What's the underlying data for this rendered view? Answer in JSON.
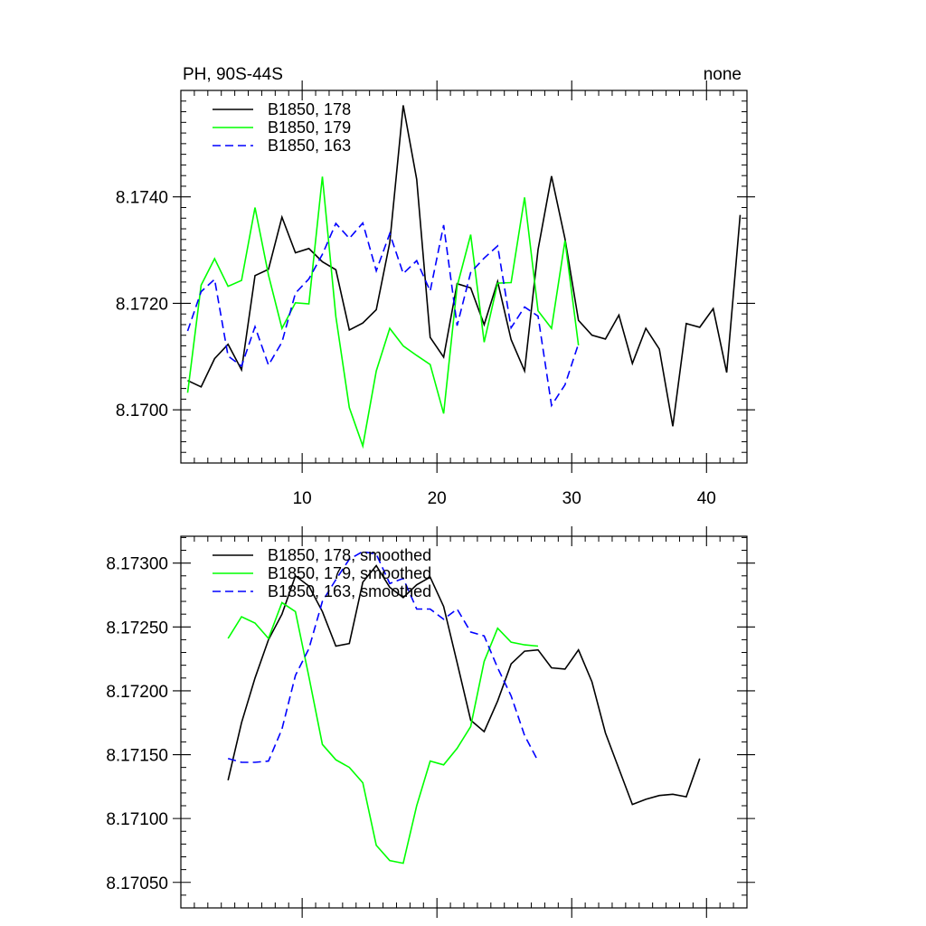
{
  "chart_data": [
    {
      "type": "line",
      "title_left": "PH, 90S-44S",
      "title_right": "none",
      "xlim": [
        1,
        43
      ],
      "ylim": [
        8.169,
        8.176
      ],
      "xticks": [
        10,
        20,
        30,
        40
      ],
      "xtick_labels": [
        "10",
        "20",
        "30",
        "40"
      ],
      "yticks": [
        8.17,
        8.172,
        8.174
      ],
      "ytick_labels": [
        "8.1700",
        "8.1720",
        "8.1740"
      ],
      "series": [
        {
          "name": "B1850, 178",
          "color": "#000000",
          "dash": "solid",
          "x": [
            1.5,
            2.5,
            3.5,
            4.5,
            5.5,
            6.5,
            7.5,
            8.5,
            9.5,
            10.5,
            11.5,
            12.5,
            13.5,
            14.5,
            15.5,
            16.5,
            17.5,
            18.5,
            19.5,
            20.5,
            21.5,
            22.5,
            23.5,
            24.5,
            25.5,
            26.5,
            27.5,
            28.5,
            29.5,
            30.5,
            31.5,
            32.5,
            33.5,
            34.5,
            35.5,
            36.5,
            37.5,
            38.5,
            39.5,
            40.5,
            41.5,
            42.5
          ],
          "values": [
            8.17055,
            8.17043,
            8.17096,
            8.17123,
            8.17075,
            8.17252,
            8.17264,
            8.17362,
            8.17295,
            8.17303,
            8.17278,
            8.17263,
            8.1715,
            8.17163,
            8.17188,
            8.17314,
            8.17572,
            8.17433,
            8.17136,
            8.17099,
            8.17237,
            8.17229,
            8.1716,
            8.17241,
            8.17132,
            8.17073,
            8.17301,
            8.17439,
            8.17321,
            8.17168,
            8.1714,
            8.17133,
            8.17178,
            8.17087,
            8.17153,
            8.17114,
            8.16969,
            8.17162,
            8.17155,
            8.1719,
            8.1707,
            8.17366
          ]
        },
        {
          "name": "B1850, 179",
          "color": "#00ff00",
          "dash": "solid",
          "x": [
            1.5,
            2.5,
            3.5,
            4.5,
            5.5,
            6.5,
            7.5,
            8.5,
            9.5,
            10.5,
            11.5,
            12.5,
            13.5,
            14.5,
            15.5,
            16.5,
            17.5,
            18.5,
            19.5,
            20.5,
            21.5,
            22.5,
            23.5,
            24.5,
            25.5,
            26.5,
            27.5,
            28.5,
            29.5,
            30.5
          ],
          "values": [
            8.17032,
            8.17234,
            8.17284,
            8.17232,
            8.17243,
            8.1738,
            8.17253,
            8.17153,
            8.17201,
            8.17199,
            8.17438,
            8.17175,
            8.17004,
            8.16932,
            8.17073,
            8.17153,
            8.1712,
            8.17102,
            8.17085,
            8.16993,
            8.17232,
            8.17329,
            8.17127,
            8.17238,
            8.17239,
            8.17399,
            8.17186,
            8.17153,
            8.17318,
            8.17121
          ]
        },
        {
          "name": "B1850, 163",
          "color": "#0000ff",
          "dash": "dashed",
          "x": [
            1.5,
            2.5,
            3.5,
            4.5,
            5.5,
            6.5,
            7.5,
            8.5,
            9.5,
            10.5,
            11.5,
            12.5,
            13.5,
            14.5,
            15.5,
            16.5,
            17.5,
            18.5,
            19.5,
            20.5,
            21.5,
            22.5,
            23.5,
            24.5,
            25.5,
            26.5,
            27.5,
            28.5,
            29.5,
            30.5
          ],
          "values": [
            8.17148,
            8.17222,
            8.17245,
            8.17101,
            8.17082,
            8.17156,
            8.17084,
            8.17127,
            8.17219,
            8.17246,
            8.17292,
            8.1735,
            8.17322,
            8.17351,
            8.17261,
            8.17331,
            8.17256,
            8.1728,
            8.17223,
            8.17347,
            8.17158,
            8.17258,
            8.17285,
            8.17308,
            8.17154,
            8.17193,
            8.17176,
            8.17008,
            8.17047,
            8.17124
          ]
        }
      ]
    },
    {
      "type": "line",
      "xlim": [
        1,
        43
      ],
      "ylim": [
        8.1703,
        8.17321
      ],
      "xticks": [
        10,
        20,
        30,
        40
      ],
      "yticks": [
        8.1705,
        8.171,
        8.1715,
        8.172,
        8.1725,
        8.173
      ],
      "ytick_labels": [
        "8.17050",
        "8.17100",
        "8.17150",
        "8.17200",
        "8.17250",
        "8.17300"
      ],
      "series": [
        {
          "name": "B1850, 178, smoothed",
          "color": "#000000",
          "dash": "solid",
          "x": [
            4.5,
            5.5,
            6.5,
            7.5,
            8.5,
            9.5,
            10.5,
            11.5,
            12.5,
            13.5,
            14.5,
            15.5,
            16.5,
            17.5,
            18.5,
            19.5,
            20.5,
            21.5,
            22.5,
            23.5,
            24.5,
            25.5,
            26.5,
            27.5,
            28.5,
            29.5,
            30.5,
            31.5,
            32.5,
            33.5,
            34.5,
            35.5,
            36.5,
            37.5,
            38.5,
            39.5
          ],
          "values": [
            8.1713,
            8.17175,
            8.1721,
            8.1724,
            8.1726,
            8.1729,
            8.17282,
            8.17262,
            8.17235,
            8.17237,
            8.17285,
            8.17298,
            8.17281,
            8.17273,
            8.17283,
            8.17289,
            8.17266,
            8.17222,
            8.17177,
            8.17168,
            8.17192,
            8.17221,
            8.17231,
            8.17232,
            8.17218,
            8.17217,
            8.17232,
            8.17207,
            8.17167,
            8.17139,
            8.17111,
            8.17115,
            8.17118,
            8.17119,
            8.17117,
            8.17147
          ]
        },
        {
          "name": "B1850, 179, smoothed",
          "color": "#00ff00",
          "dash": "solid",
          "x": [
            4.5,
            5.5,
            6.5,
            7.5,
            8.5,
            9.5,
            10.5,
            11.5,
            12.5,
            13.5,
            14.5,
            15.5,
            16.5,
            17.5,
            18.5,
            19.5,
            20.5,
            21.5,
            22.5,
            23.5,
            24.5,
            25.5,
            26.5,
            27.5
          ],
          "values": [
            8.17241,
            8.17258,
            8.17253,
            8.17241,
            8.17269,
            8.17262,
            8.17211,
            8.17158,
            8.17146,
            8.1714,
            8.17128,
            8.17079,
            8.17067,
            8.17065,
            8.1711,
            8.17145,
            8.17142,
            8.17155,
            8.17172,
            8.17223,
            8.17249,
            8.17238,
            8.17236,
            8.17235
          ]
        },
        {
          "name": "B1850, 163, smoothed",
          "color": "#0000ff",
          "dash": "dashed",
          "x": [
            4.5,
            5.5,
            6.5,
            7.5,
            8.5,
            9.5,
            10.5,
            11.5,
            12.5,
            13.5,
            14.5,
            15.5,
            16.5,
            17.5,
            18.5,
            19.5,
            20.5,
            21.5,
            22.5,
            23.5,
            24.5,
            25.5,
            26.5,
            27.5
          ],
          "values": [
            8.17147,
            8.17144,
            8.17144,
            8.17145,
            8.1717,
            8.17212,
            8.17233,
            8.1727,
            8.17287,
            8.17303,
            8.17309,
            8.17307,
            8.17284,
            8.17288,
            8.17264,
            8.17264,
            8.17256,
            8.17264,
            8.17246,
            8.17243,
            8.17218,
            8.17196,
            8.17165,
            8.17145
          ]
        }
      ]
    }
  ]
}
